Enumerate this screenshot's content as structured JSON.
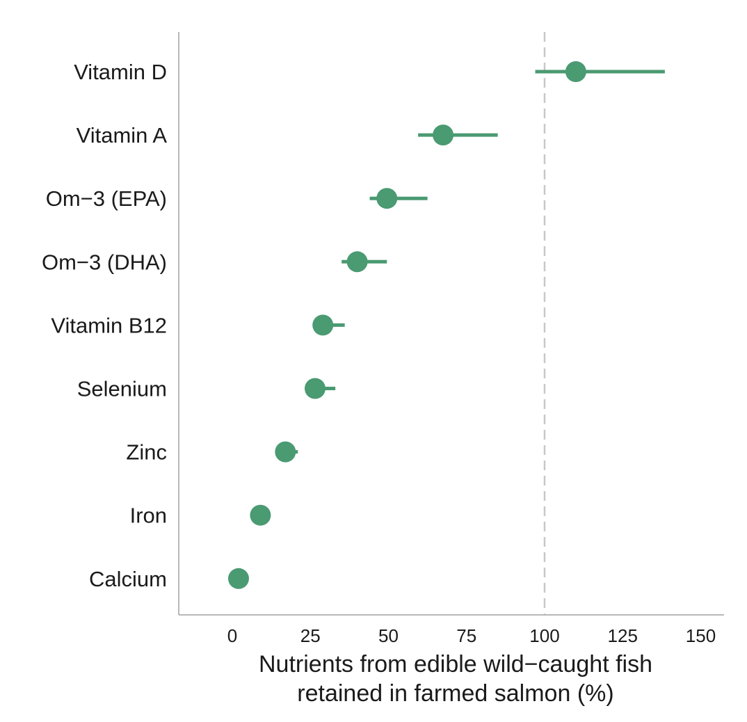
{
  "chart_data": {
    "type": "scatter",
    "subtype": "dot-and-whisker",
    "title": "",
    "xlabel_lines": [
      "Nutrients from edible wild−caught fish",
      "retained in farmed salmon (%)"
    ],
    "ylabel": "",
    "xlim": [
      -17,
      158
    ],
    "x_ticks": [
      0,
      25,
      50,
      75,
      100,
      125,
      150
    ],
    "x_tick_labels": [
      "0",
      "25",
      "50",
      "75",
      "100",
      "125",
      "150"
    ],
    "reference_line": {
      "x": 100,
      "style": "dashed",
      "color": "#c8c8c8"
    },
    "grid": false,
    "legend": "none",
    "colors": {
      "point": "#4a9a72",
      "interval": "#4a9a72",
      "axis": "#b8b8b8"
    },
    "categories": [
      "Vitamin D",
      "Vitamin A",
      "Om−3 (EPA)",
      "Om−3 (DHA)",
      "Vitamin B12",
      "Selenium",
      "Zinc",
      "Iron",
      "Calcium"
    ],
    "values": [
      110,
      67.5,
      49.5,
      40,
      29,
      26.5,
      17,
      9,
      2
    ],
    "lower": [
      97,
      59.5,
      44,
      35,
      26,
      24,
      15.5,
      8,
      1.5
    ],
    "upper": [
      138.5,
      85,
      62.5,
      49.5,
      36,
      33,
      21,
      10,
      2.5
    ]
  }
}
